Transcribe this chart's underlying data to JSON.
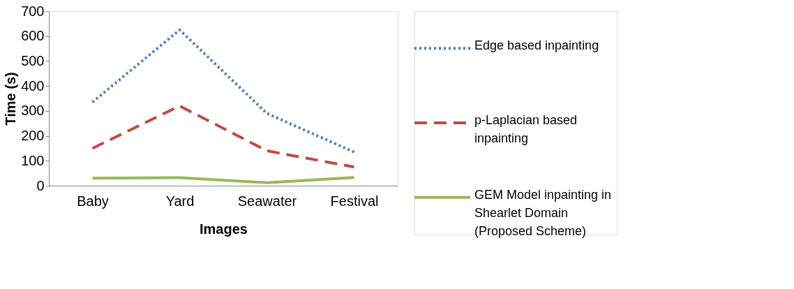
{
  "chart_data": {
    "type": "line",
    "xlabel": "Images",
    "ylabel": "Time (s)",
    "categories": [
      "Baby",
      "Yard",
      "Seawater",
      "Festival"
    ],
    "ylim": [
      0,
      700
    ],
    "yticks": [
      0,
      100,
      200,
      300,
      400,
      500,
      600,
      700
    ],
    "grid": false,
    "legend": "right",
    "marker": "none",
    "series": [
      {
        "name": "Edge based inpainting",
        "color": "#4a7ebb",
        "line_style": "dotted",
        "values": [
          335,
          625,
          290,
          135
        ]
      },
      {
        "name": "p-Laplacian based inpainting",
        "color": "#be4b48",
        "line_style": "dashed",
        "values": [
          150,
          320,
          140,
          75
        ]
      },
      {
        "name": "GEM Model inpainting in Shearlet Domain (Proposed Scheme)",
        "color": "#98b954",
        "line_style": "solid",
        "values": [
          30,
          32,
          12,
          33
        ]
      }
    ]
  }
}
